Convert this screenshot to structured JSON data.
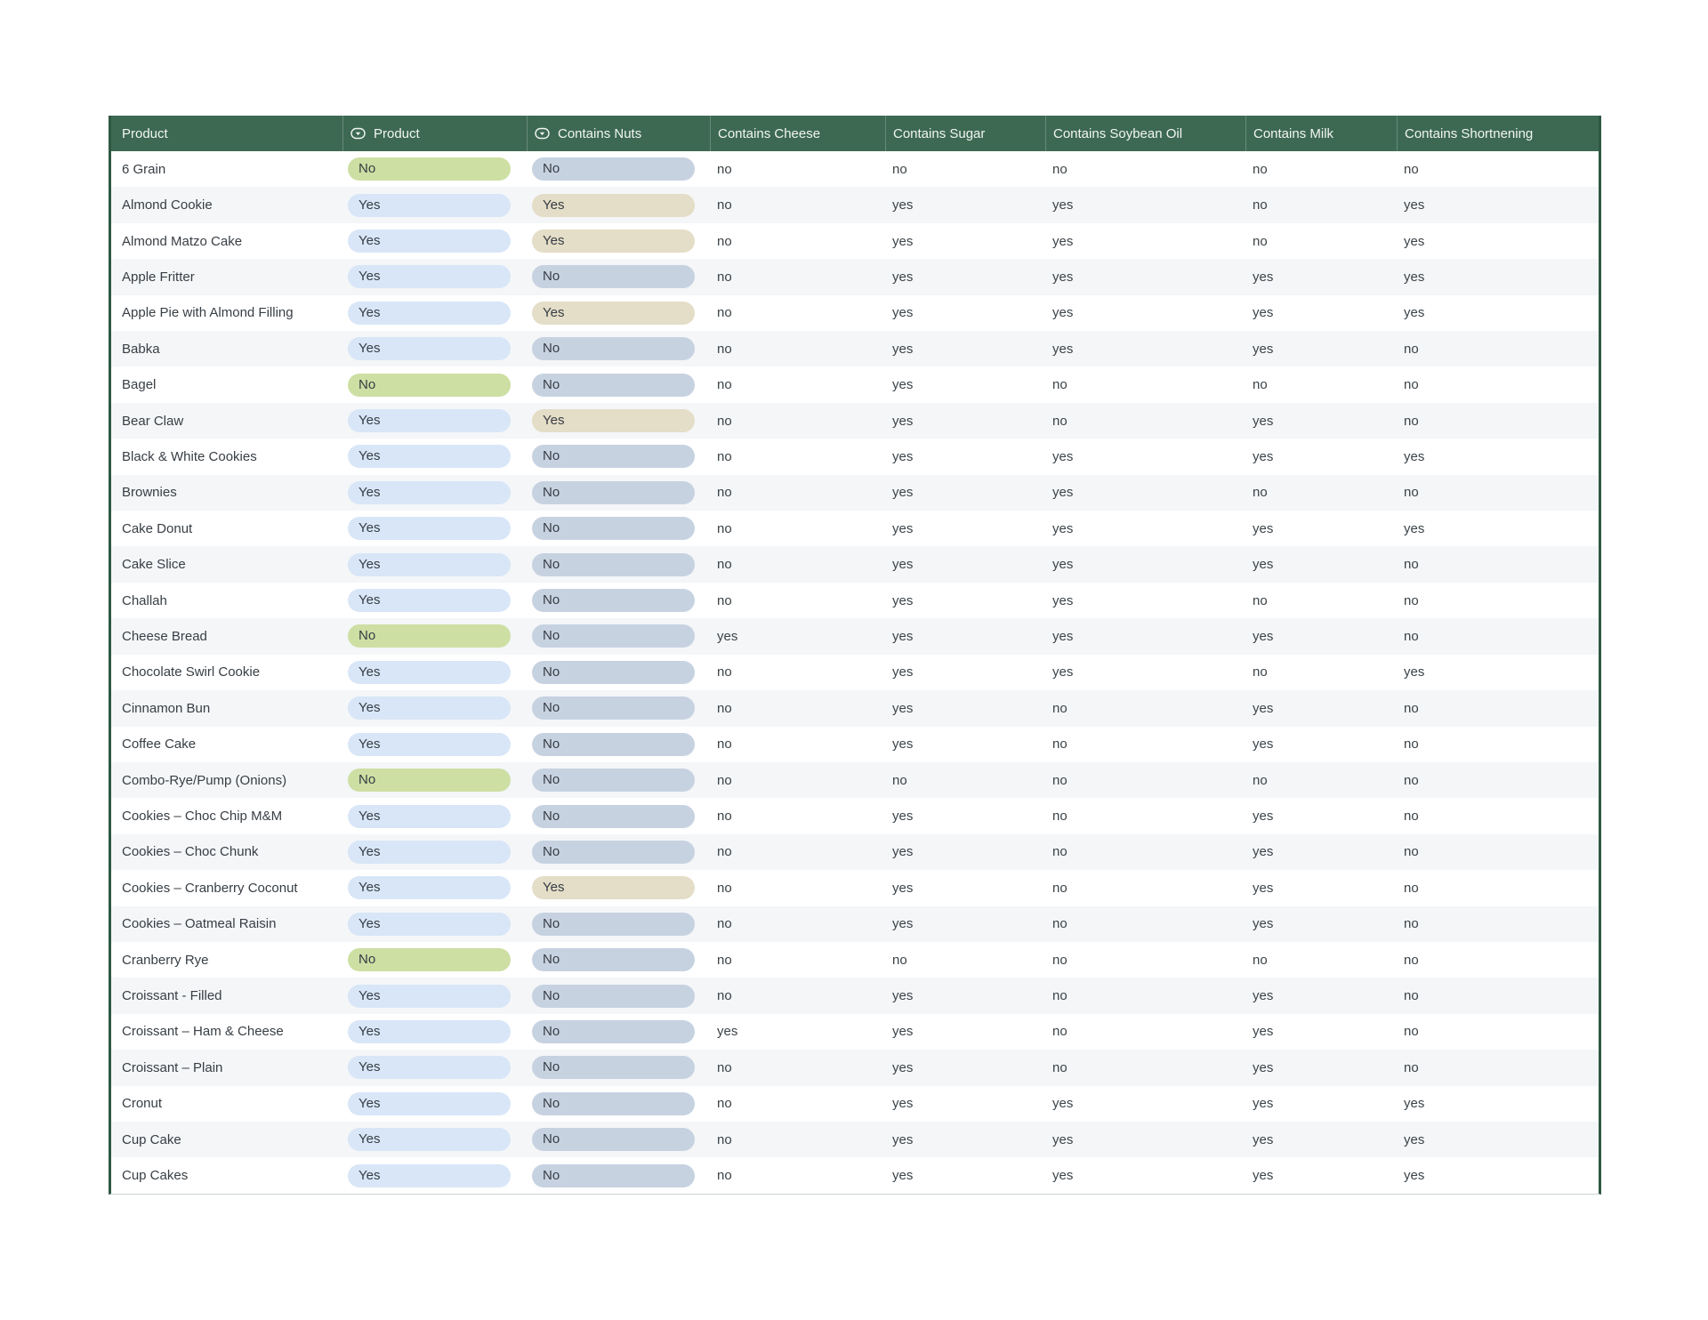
{
  "theme": {
    "header_bg": "#3d6952",
    "header_text": "#f2f5f2",
    "table_border": "#2f5843",
    "row_stripe": "#f4f6f8",
    "cell_text": "#3c4348",
    "pill_text": "#363d44",
    "product_yes_pill": "#d8e6f7",
    "product_no_pill": "#cddfa3",
    "nuts_yes_pill": "#e4ddc7",
    "nuts_no_pill": "#c7d2e1"
  },
  "table": {
    "columns": [
      {
        "label": "Product",
        "type": "text"
      },
      {
        "label": "Product",
        "type": "single-select"
      },
      {
        "label": "Contains Nuts",
        "type": "single-select"
      },
      {
        "label": "Contains Cheese",
        "type": "text"
      },
      {
        "label": "Contains Sugar",
        "type": "text"
      },
      {
        "label": "Contains Soybean Oil",
        "type": "text"
      },
      {
        "label": "Contains Milk",
        "type": "text"
      },
      {
        "label": "Contains Shortnening",
        "type": "text"
      }
    ],
    "rows": [
      {
        "name": "6 Grain",
        "product": "No",
        "nuts": "No",
        "cheese": "no",
        "sugar": "no",
        "soybean_oil": "no",
        "milk": "no",
        "shortening": "no"
      },
      {
        "name": "Almond Cookie",
        "product": "Yes",
        "nuts": "Yes",
        "cheese": "no",
        "sugar": "yes",
        "soybean_oil": "yes",
        "milk": "no",
        "shortening": "yes"
      },
      {
        "name": "Almond Matzo Cake",
        "product": "Yes",
        "nuts": "Yes",
        "cheese": "no",
        "sugar": "yes",
        "soybean_oil": "yes",
        "milk": "no",
        "shortening": "yes"
      },
      {
        "name": "Apple Fritter",
        "product": "Yes",
        "nuts": "No",
        "cheese": "no",
        "sugar": "yes",
        "soybean_oil": "yes",
        "milk": "yes",
        "shortening": "yes"
      },
      {
        "name": "Apple Pie with Almond Filling",
        "product": "Yes",
        "nuts": "Yes",
        "cheese": "no",
        "sugar": "yes",
        "soybean_oil": "yes",
        "milk": "yes",
        "shortening": "yes"
      },
      {
        "name": "Babka",
        "product": "Yes",
        "nuts": "No",
        "cheese": "no",
        "sugar": "yes",
        "soybean_oil": "yes",
        "milk": "yes",
        "shortening": "no"
      },
      {
        "name": "Bagel",
        "product": "No",
        "nuts": "No",
        "cheese": "no",
        "sugar": "yes",
        "soybean_oil": "no",
        "milk": "no",
        "shortening": "no"
      },
      {
        "name": "Bear Claw",
        "product": "Yes",
        "nuts": "Yes",
        "cheese": "no",
        "sugar": "yes",
        "soybean_oil": "no",
        "milk": "yes",
        "shortening": "no"
      },
      {
        "name": "Black & White Cookies",
        "product": "Yes",
        "nuts": "No",
        "cheese": "no",
        "sugar": "yes",
        "soybean_oil": "yes",
        "milk": "yes",
        "shortening": "yes"
      },
      {
        "name": "Brownies",
        "product": "Yes",
        "nuts": "No",
        "cheese": "no",
        "sugar": "yes",
        "soybean_oil": "yes",
        "milk": "no",
        "shortening": "no"
      },
      {
        "name": "Cake Donut",
        "product": "Yes",
        "nuts": "No",
        "cheese": "no",
        "sugar": "yes",
        "soybean_oil": "yes",
        "milk": "yes",
        "shortening": "yes"
      },
      {
        "name": "Cake Slice",
        "product": "Yes",
        "nuts": "No",
        "cheese": "no",
        "sugar": "yes",
        "soybean_oil": "yes",
        "milk": "yes",
        "shortening": "no"
      },
      {
        "name": "Challah",
        "product": "Yes",
        "nuts": "No",
        "cheese": "no",
        "sugar": "yes",
        "soybean_oil": "yes",
        "milk": "no",
        "shortening": "no"
      },
      {
        "name": "Cheese Bread",
        "product": "No",
        "nuts": "No",
        "cheese": "yes",
        "sugar": "yes",
        "soybean_oil": "yes",
        "milk": "yes",
        "shortening": "no"
      },
      {
        "name": "Chocolate Swirl Cookie",
        "product": "Yes",
        "nuts": "No",
        "cheese": "no",
        "sugar": "yes",
        "soybean_oil": "yes",
        "milk": "no",
        "shortening": "yes"
      },
      {
        "name": "Cinnamon Bun",
        "product": "Yes",
        "nuts": "No",
        "cheese": "no",
        "sugar": "yes",
        "soybean_oil": "no",
        "milk": "yes",
        "shortening": "no"
      },
      {
        "name": "Coffee Cake",
        "product": "Yes",
        "nuts": "No",
        "cheese": "no",
        "sugar": "yes",
        "soybean_oil": "no",
        "milk": "yes",
        "shortening": "no"
      },
      {
        "name": "Combo-Rye/Pump (Onions)",
        "product": "No",
        "nuts": "No",
        "cheese": "no",
        "sugar": "no",
        "soybean_oil": "no",
        "milk": "no",
        "shortening": "no"
      },
      {
        "name": "Cookies – Choc Chip M&M",
        "product": "Yes",
        "nuts": "No",
        "cheese": "no",
        "sugar": "yes",
        "soybean_oil": "no",
        "milk": "yes",
        "shortening": "no"
      },
      {
        "name": "Cookies – Choc Chunk",
        "product": "Yes",
        "nuts": "No",
        "cheese": "no",
        "sugar": "yes",
        "soybean_oil": "no",
        "milk": "yes",
        "shortening": "no"
      },
      {
        "name": "Cookies – Cranberry Coconut",
        "product": "Yes",
        "nuts": "Yes",
        "cheese": "no",
        "sugar": "yes",
        "soybean_oil": "no",
        "milk": "yes",
        "shortening": "no"
      },
      {
        "name": "Cookies – Oatmeal Raisin",
        "product": "Yes",
        "nuts": "No",
        "cheese": "no",
        "sugar": "yes",
        "soybean_oil": "no",
        "milk": "yes",
        "shortening": "no"
      },
      {
        "name": "Cranberry Rye",
        "product": "No",
        "nuts": "No",
        "cheese": "no",
        "sugar": "no",
        "soybean_oil": "no",
        "milk": "no",
        "shortening": "no"
      },
      {
        "name": "Croissant - Filled",
        "product": "Yes",
        "nuts": "No",
        "cheese": "no",
        "sugar": "yes",
        "soybean_oil": "no",
        "milk": "yes",
        "shortening": "no"
      },
      {
        "name": "Croissant – Ham & Cheese",
        "product": "Yes",
        "nuts": "No",
        "cheese": "yes",
        "sugar": "yes",
        "soybean_oil": "no",
        "milk": "yes",
        "shortening": "no"
      },
      {
        "name": "Croissant – Plain",
        "product": "Yes",
        "nuts": "No",
        "cheese": "no",
        "sugar": "yes",
        "soybean_oil": "no",
        "milk": "yes",
        "shortening": "no"
      },
      {
        "name": "Cronut",
        "product": "Yes",
        "nuts": "No",
        "cheese": "no",
        "sugar": "yes",
        "soybean_oil": "yes",
        "milk": "yes",
        "shortening": "yes"
      },
      {
        "name": "Cup Cake",
        "product": "Yes",
        "nuts": "No",
        "cheese": "no",
        "sugar": "yes",
        "soybean_oil": "yes",
        "milk": "yes",
        "shortening": "yes"
      },
      {
        "name": "Cup Cakes",
        "product": "Yes",
        "nuts": "No",
        "cheese": "no",
        "sugar": "yes",
        "soybean_oil": "yes",
        "milk": "yes",
        "shortening": "yes"
      }
    ]
  }
}
